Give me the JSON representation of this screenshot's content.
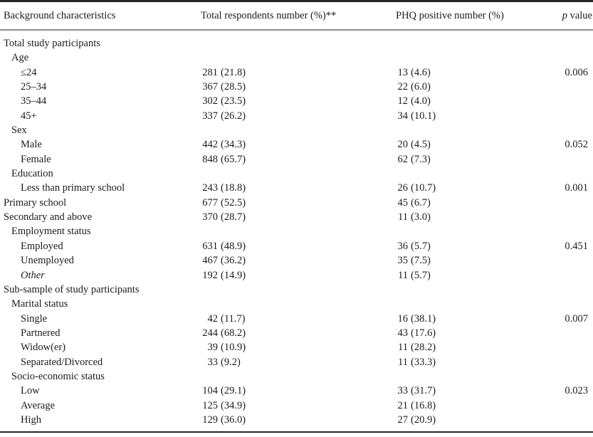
{
  "table": {
    "headers": {
      "col1": "Background characteristics",
      "col2": "Total respondents number (%)**",
      "col3": "PHQ positive number (%)",
      "col4": {
        "italic": "p",
        "rest": " value"
      }
    },
    "rows": [
      {
        "label": "Total study participants",
        "indent": 0
      },
      {
        "label": "Age",
        "indent": 1
      },
      {
        "label": "≤24",
        "indent": 2,
        "total_n": "281",
        "total_pct": "(21.8)",
        "phq_n": "13",
        "phq_pct": "(4.6)",
        "p_value": "0.006"
      },
      {
        "label": "25–34",
        "indent": 2,
        "total_n": "367",
        "total_pct": "(28.5)",
        "phq_n": "22",
        "phq_pct": "(6.0)"
      },
      {
        "label": "35–44",
        "indent": 2,
        "total_n": "302",
        "total_pct": "(23.5)",
        "phq_n": "12",
        "phq_pct": "(4.0)"
      },
      {
        "label": "45+",
        "indent": 2,
        "total_n": "337",
        "total_pct": "(26.2)",
        "phq_n": "34",
        "phq_pct": "(10.1)"
      },
      {
        "label": "Sex",
        "indent": 1
      },
      {
        "label": "Male",
        "indent": 2,
        "total_n": "442",
        "total_pct": "(34.3)",
        "phq_n": "20",
        "phq_pct": "(4.5)",
        "p_value": "0.052"
      },
      {
        "label": "Female",
        "indent": 2,
        "total_n": "848",
        "total_pct": "(65.7)",
        "phq_n": "62",
        "phq_pct": "(7.3)"
      },
      {
        "label": "Education",
        "indent": 1
      },
      {
        "label": "Less than primary school",
        "indent": 2,
        "total_n": "243",
        "total_pct": "(18.8)",
        "phq_n": "26",
        "phq_pct": "(10.7)",
        "p_value": "0.001"
      },
      {
        "label": "Primary school",
        "indent": 0,
        "total_n": "677",
        "total_pct": "(52.5)",
        "phq_n": "45",
        "phq_pct": "(6.7)"
      },
      {
        "label": "Secondary and above",
        "indent": 0,
        "total_n": "370",
        "total_pct": "(28.7)",
        "phq_n": "11",
        "phq_pct": "(3.0)"
      },
      {
        "label": "Employment status",
        "indent": 1
      },
      {
        "label": "Employed",
        "indent": 2,
        "total_n": "631",
        "total_pct": "(48.9)",
        "phq_n": "36",
        "phq_pct": "(5.7)",
        "p_value": "0.451"
      },
      {
        "label": "Unemployed",
        "indent": 2,
        "total_n": "467",
        "total_pct": "(36.2)",
        "phq_n": "35",
        "phq_pct": "(7.5)"
      },
      {
        "label": "Other",
        "indent": 2,
        "italic": true,
        "total_n": "192",
        "total_pct": "(14.9)",
        "phq_n": "11",
        "phq_pct": "(5.7)"
      },
      {
        "label": "Sub-sample of study participants",
        "indent": 0
      },
      {
        "label": "Marital status",
        "indent": 1
      },
      {
        "label": "Single",
        "indent": 2,
        "total_n": "42",
        "total_pct": "(11.7)",
        "phq_n": "16",
        "phq_pct": "(38.1)",
        "p_value": "0.007"
      },
      {
        "label": "Partnered",
        "indent": 2,
        "total_n": "244",
        "total_pct": "(68.2)",
        "phq_n": "43",
        "phq_pct": "(17.6)"
      },
      {
        "label": "Widow(er)",
        "indent": 2,
        "total_n": "39",
        "total_pct": "(10.9)",
        "phq_n": "11",
        "phq_pct": "(28.2)"
      },
      {
        "label": "Separated/Divorced",
        "indent": 2,
        "total_n": "33",
        "total_pct": "(9.2)",
        "phq_n": "11",
        "phq_pct": "(33.3)"
      },
      {
        "label": "Socio-economic status",
        "indent": 1
      },
      {
        "label": "Low",
        "indent": 2,
        "total_n": "104",
        "total_pct": "(29.1)",
        "phq_n": "33",
        "phq_pct": "(31.7)",
        "p_value": "0.023"
      },
      {
        "label": "Average",
        "indent": 2,
        "total_n": "125",
        "total_pct": "(34.9)",
        "phq_n": "21",
        "phq_pct": "(16.8)"
      },
      {
        "label": "High",
        "indent": 2,
        "total_n": "129",
        "total_pct": "(36.0)",
        "phq_n": "27",
        "phq_pct": "(20.9)"
      }
    ]
  }
}
